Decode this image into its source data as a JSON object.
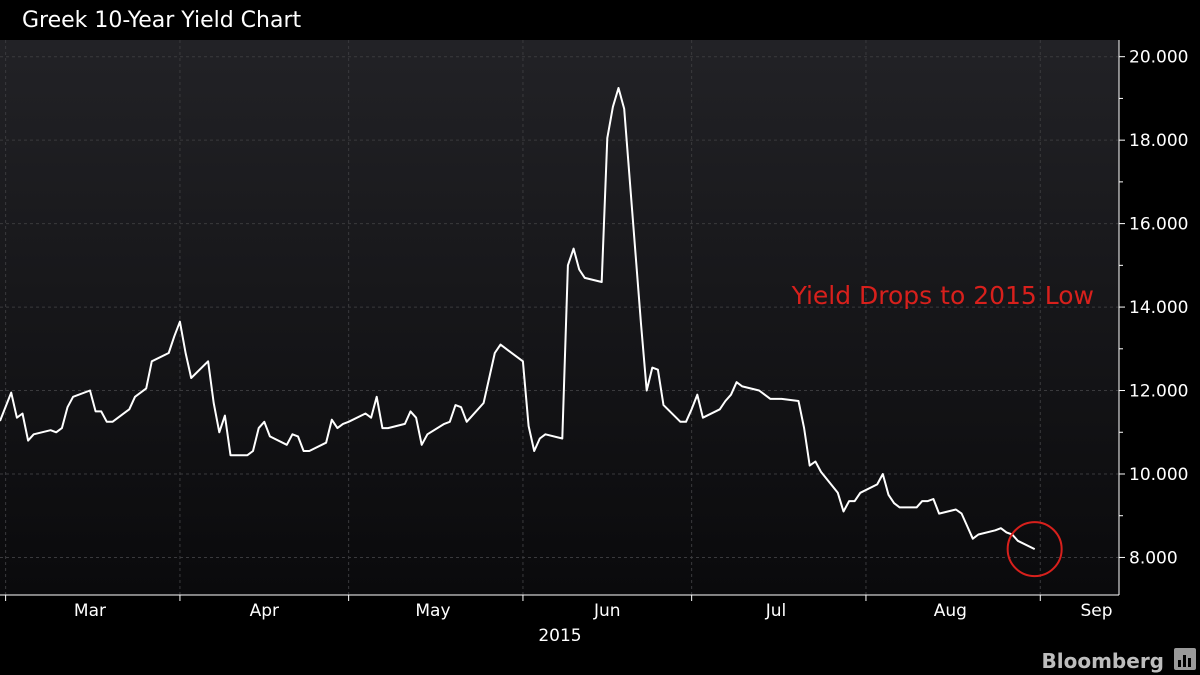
{
  "chart_data": {
    "type": "line",
    "title": "Greek 10-Year Yield Chart",
    "xlabel": "2015",
    "ylabel": "",
    "y_ticks": [
      "20.000",
      "18.000",
      "16.000",
      "14.000",
      "12.000",
      "10.000",
      "8.000"
    ],
    "ylim": [
      7.1,
      20.4
    ],
    "x_ticks": [
      "Mar",
      "Apr",
      "May",
      "Jun",
      "Jul",
      "Aug",
      "Sep"
    ],
    "x_range": [
      "2015-02-28",
      "2015-09-15"
    ],
    "grid": true,
    "series": [
      {
        "color": "#ffffff",
        "points": [
          [
            "2015-02-28",
            11.27
          ],
          [
            "2015-03-02",
            11.95
          ],
          [
            "2015-03-03",
            11.35
          ],
          [
            "2015-03-04",
            11.45
          ],
          [
            "2015-03-05",
            10.8
          ],
          [
            "2015-03-06",
            10.95
          ],
          [
            "2015-03-09",
            11.05
          ],
          [
            "2015-03-10",
            11.0
          ],
          [
            "2015-03-11",
            11.1
          ],
          [
            "2015-03-12",
            11.6
          ],
          [
            "2015-03-13",
            11.85
          ],
          [
            "2015-03-16",
            12.0
          ],
          [
            "2015-03-17",
            11.5
          ],
          [
            "2015-03-18",
            11.5
          ],
          [
            "2015-03-19",
            11.25
          ],
          [
            "2015-03-20",
            11.25
          ],
          [
            "2015-03-23",
            11.55
          ],
          [
            "2015-03-24",
            11.85
          ],
          [
            "2015-03-26",
            12.05
          ],
          [
            "2015-03-27",
            12.7
          ],
          [
            "2015-03-30",
            12.9
          ],
          [
            "2015-03-31",
            13.3
          ],
          [
            "2015-04-01",
            13.65
          ],
          [
            "2015-04-02",
            12.9
          ],
          [
            "2015-04-03",
            12.3
          ],
          [
            "2015-04-06",
            12.7
          ],
          [
            "2015-04-07",
            11.7
          ],
          [
            "2015-04-08",
            11.0
          ],
          [
            "2015-04-09",
            11.4
          ],
          [
            "2015-04-10",
            10.45
          ],
          [
            "2015-04-13",
            10.45
          ],
          [
            "2015-04-14",
            10.55
          ],
          [
            "2015-04-15",
            11.1
          ],
          [
            "2015-04-16",
            11.25
          ],
          [
            "2015-04-17",
            10.9
          ],
          [
            "2015-04-20",
            10.7
          ],
          [
            "2015-04-21",
            10.95
          ],
          [
            "2015-04-22",
            10.9
          ],
          [
            "2015-04-23",
            10.55
          ],
          [
            "2015-04-24",
            10.55
          ],
          [
            "2015-04-27",
            10.75
          ],
          [
            "2015-04-28",
            11.3
          ],
          [
            "2015-04-29",
            11.1
          ],
          [
            "2015-04-30",
            11.2
          ],
          [
            "2015-05-01",
            11.25
          ],
          [
            "2015-05-04",
            11.45
          ],
          [
            "2015-05-05",
            11.35
          ],
          [
            "2015-05-06",
            11.85
          ],
          [
            "2015-05-07",
            11.1
          ],
          [
            "2015-05-08",
            11.1
          ],
          [
            "2015-05-11",
            11.2
          ],
          [
            "2015-05-12",
            11.5
          ],
          [
            "2015-05-13",
            11.35
          ],
          [
            "2015-05-14",
            10.7
          ],
          [
            "2015-05-15",
            10.95
          ],
          [
            "2015-05-18",
            11.2
          ],
          [
            "2015-05-19",
            11.25
          ],
          [
            "2015-05-20",
            11.65
          ],
          [
            "2015-05-21",
            11.6
          ],
          [
            "2015-05-22",
            11.25
          ],
          [
            "2015-05-25",
            11.7
          ],
          [
            "2015-05-26",
            12.3
          ],
          [
            "2015-05-27",
            12.9
          ],
          [
            "2015-05-28",
            13.1
          ],
          [
            "2015-05-29",
            13.0
          ],
          [
            "2015-06-01",
            12.7
          ],
          [
            "2015-06-02",
            11.15
          ],
          [
            "2015-06-03",
            10.55
          ],
          [
            "2015-06-04",
            10.85
          ],
          [
            "2015-06-05",
            10.95
          ],
          [
            "2015-06-08",
            10.85
          ],
          [
            "2015-06-09",
            15.0
          ],
          [
            "2015-06-10",
            15.4
          ],
          [
            "2015-06-11",
            14.9
          ],
          [
            "2015-06-12",
            14.7
          ],
          [
            "2015-06-15",
            14.6
          ],
          [
            "2015-06-16",
            18.05
          ],
          [
            "2015-06-17",
            18.8
          ],
          [
            "2015-06-18",
            19.25
          ],
          [
            "2015-06-19",
            18.75
          ],
          [
            "2015-06-22",
            13.6
          ],
          [
            "2015-06-23",
            12.0
          ],
          [
            "2015-06-24",
            12.55
          ],
          [
            "2015-06-25",
            12.5
          ],
          [
            "2015-06-26",
            11.65
          ],
          [
            "2015-06-29",
            11.25
          ],
          [
            "2015-06-30",
            11.25
          ],
          [
            "2015-07-01",
            11.55
          ],
          [
            "2015-07-02",
            11.9
          ],
          [
            "2015-07-03",
            11.35
          ],
          [
            "2015-07-06",
            11.55
          ],
          [
            "2015-07-07",
            11.75
          ],
          [
            "2015-07-08",
            11.9
          ],
          [
            "2015-07-09",
            12.2
          ],
          [
            "2015-07-10",
            12.1
          ],
          [
            "2015-07-13",
            12.0
          ],
          [
            "2015-07-14",
            11.9
          ],
          [
            "2015-07-15",
            11.8
          ],
          [
            "2015-07-16",
            11.8
          ],
          [
            "2015-07-17",
            11.8
          ],
          [
            "2015-07-20",
            11.75
          ],
          [
            "2015-07-21",
            11.1
          ],
          [
            "2015-07-22",
            10.2
          ],
          [
            "2015-07-23",
            10.3
          ],
          [
            "2015-07-24",
            10.05
          ],
          [
            "2015-07-27",
            9.55
          ],
          [
            "2015-07-28",
            9.1
          ],
          [
            "2015-07-29",
            9.35
          ],
          [
            "2015-07-30",
            9.35
          ],
          [
            "2015-07-31",
            9.55
          ],
          [
            "2015-08-03",
            9.75
          ],
          [
            "2015-08-04",
            10.0
          ],
          [
            "2015-08-05",
            9.5
          ],
          [
            "2015-08-06",
            9.3
          ],
          [
            "2015-08-07",
            9.2
          ],
          [
            "2015-08-10",
            9.2
          ],
          [
            "2015-08-11",
            9.35
          ],
          [
            "2015-08-12",
            9.35
          ],
          [
            "2015-08-13",
            9.4
          ],
          [
            "2015-08-14",
            9.05
          ],
          [
            "2015-08-17",
            9.15
          ],
          [
            "2015-08-18",
            9.05
          ],
          [
            "2015-08-19",
            8.75
          ],
          [
            "2015-08-20",
            8.45
          ],
          [
            "2015-08-21",
            8.55
          ],
          [
            "2015-08-24",
            8.65
          ],
          [
            "2015-08-25",
            8.7
          ],
          [
            "2015-08-26",
            8.6
          ],
          [
            "2015-08-27",
            8.55
          ],
          [
            "2015-08-28",
            8.4
          ],
          [
            "2015-08-31",
            8.2
          ]
        ]
      }
    ],
    "annotation": {
      "text": "Yield Drops to 2015 Low",
      "color": "#d8201c",
      "marker": "circle",
      "target_date": "2015-08-31",
      "target_value": 8.2
    }
  },
  "footer": {
    "brand": "Bloomberg"
  },
  "colors": {
    "background": "#000000",
    "plot_bg_top": "#222226",
    "plot_bg_bottom": "#0a0a0c",
    "grid": "#3a3a3d",
    "line": "#ffffff",
    "annotation": "#d8201c"
  }
}
